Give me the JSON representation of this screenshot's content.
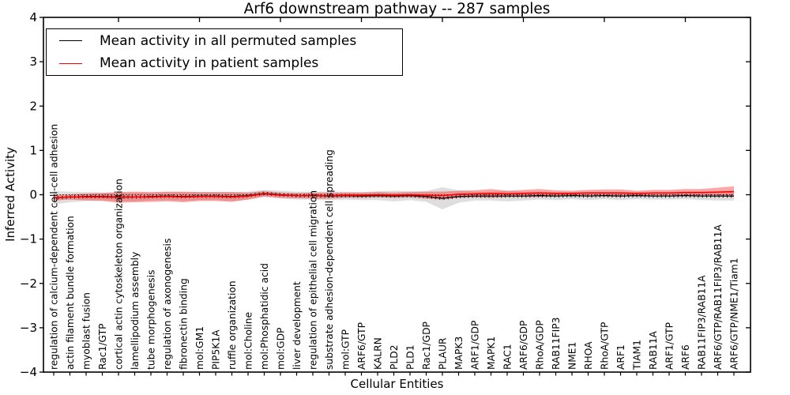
{
  "chart_data": {
    "type": "line",
    "title": "Arf6 downstream pathway -- 287 samples",
    "xlabel": "Cellular Entities",
    "ylabel": "Inferred Activity",
    "ylim": [
      -4,
      4
    ],
    "yticks": [
      4,
      3,
      2,
      1,
      0,
      -1,
      -2,
      -3,
      -4
    ],
    "x_major_tick_indices": [
      4,
      9,
      14,
      19,
      24,
      29,
      34,
      39
    ],
    "grid": false,
    "legend_position": "upper left",
    "zero_line": true,
    "categories": [
      "regulation of calcium-dependent cell-cell adhesion",
      "actin filament bundle formation",
      "myoblast fusion",
      "Rac1/GTP",
      "cortical actin cytoskeleton organization",
      "lamellipodium assembly",
      "tube morphogenesis",
      "regulation of axonogenesis",
      "fibronectin binding",
      "mol:GM1",
      "PIP5K1A",
      "ruffle organization",
      "mol:Choline",
      "mol:Phosphatidic acid",
      "mol:GDP",
      "liver development",
      "regulation of epithelial cell migration",
      "substrate adhesion-dependent cell spreading",
      "mol:GTP",
      "ARF6/GTP",
      "KALRN",
      "PLD2",
      "PLD1",
      "Rac1/GDP",
      "PLAUR",
      "MAPK3",
      "ARF1/GDP",
      "MAPK1",
      "RAC1",
      "ARF6/GDP",
      "RhoA/GDP",
      "RAB11FIP3",
      "NME1",
      "RHOA",
      "RhoA/GTP",
      "ARF1",
      "TIAM1",
      "RAB11A",
      "ARF1/GTP",
      "ARF6",
      "RAB11FIP3/RAB11A",
      "ARF6/GTP/RAB11FIP3/RAB11A",
      "ARF6/GTP/NME1/Tiam1"
    ],
    "series": [
      {
        "name": "Mean activity in all permuted samples",
        "color": "#000000",
        "values": [
          -0.07,
          -0.05,
          -0.04,
          -0.04,
          -0.05,
          -0.05,
          -0.04,
          -0.03,
          -0.04,
          -0.03,
          -0.03,
          -0.04,
          -0.02,
          0.03,
          0.0,
          -0.02,
          -0.02,
          -0.03,
          -0.02,
          -0.03,
          -0.02,
          -0.03,
          -0.02,
          -0.04,
          -0.08,
          -0.04,
          -0.03,
          -0.03,
          -0.03,
          -0.03,
          -0.02,
          -0.03,
          -0.02,
          -0.03,
          -0.02,
          -0.03,
          -0.02,
          -0.03,
          -0.03,
          -0.02,
          -0.03,
          -0.03,
          -0.03
        ]
      },
      {
        "name": "Mean activity in patient samples",
        "color": "#ff0000",
        "values": [
          -0.07,
          -0.05,
          -0.05,
          -0.05,
          -0.06,
          -0.05,
          -0.05,
          -0.04,
          -0.05,
          -0.04,
          -0.04,
          -0.05,
          -0.03,
          0.02,
          -0.01,
          -0.02,
          -0.02,
          -0.02,
          -0.01,
          -0.01,
          0.0,
          -0.01,
          0.0,
          -0.01,
          -0.02,
          0.01,
          0.02,
          0.03,
          0.02,
          0.03,
          0.04,
          0.03,
          0.03,
          0.04,
          0.04,
          0.04,
          0.03,
          0.04,
          0.04,
          0.05,
          0.05,
          0.06,
          0.07
        ]
      }
    ],
    "bands": [
      {
        "name": "permuted-samples-range",
        "color": "#999999",
        "alpha": 0.32,
        "center_series": 0,
        "half_widths": [
          0.15,
          0.12,
          0.1,
          0.09,
          0.1,
          0.1,
          0.09,
          0.09,
          0.1,
          0.09,
          0.09,
          0.1,
          0.09,
          0.08,
          0.09,
          0.09,
          0.09,
          0.1,
          0.09,
          0.09,
          0.1,
          0.12,
          0.1,
          0.12,
          0.25,
          0.14,
          0.1,
          0.1,
          0.12,
          0.1,
          0.09,
          0.09,
          0.08,
          0.09,
          0.08,
          0.09,
          0.08,
          0.08,
          0.08,
          0.08,
          0.09,
          0.1,
          0.1
        ]
      },
      {
        "name": "patient-samples-range",
        "color": "#ff0000",
        "alpha": 0.35,
        "center_series": 1,
        "half_widths": [
          0.06,
          0.06,
          0.08,
          0.09,
          0.12,
          0.12,
          0.11,
          0.11,
          0.12,
          0.1,
          0.1,
          0.11,
          0.08,
          0.06,
          0.06,
          0.06,
          0.07,
          0.07,
          0.06,
          0.06,
          0.06,
          0.06,
          0.06,
          0.08,
          0.09,
          0.08,
          0.08,
          0.1,
          0.07,
          0.08,
          0.09,
          0.07,
          0.06,
          0.07,
          0.08,
          0.08,
          0.06,
          0.07,
          0.07,
          0.08,
          0.08,
          0.1,
          0.12
        ]
      }
    ]
  }
}
